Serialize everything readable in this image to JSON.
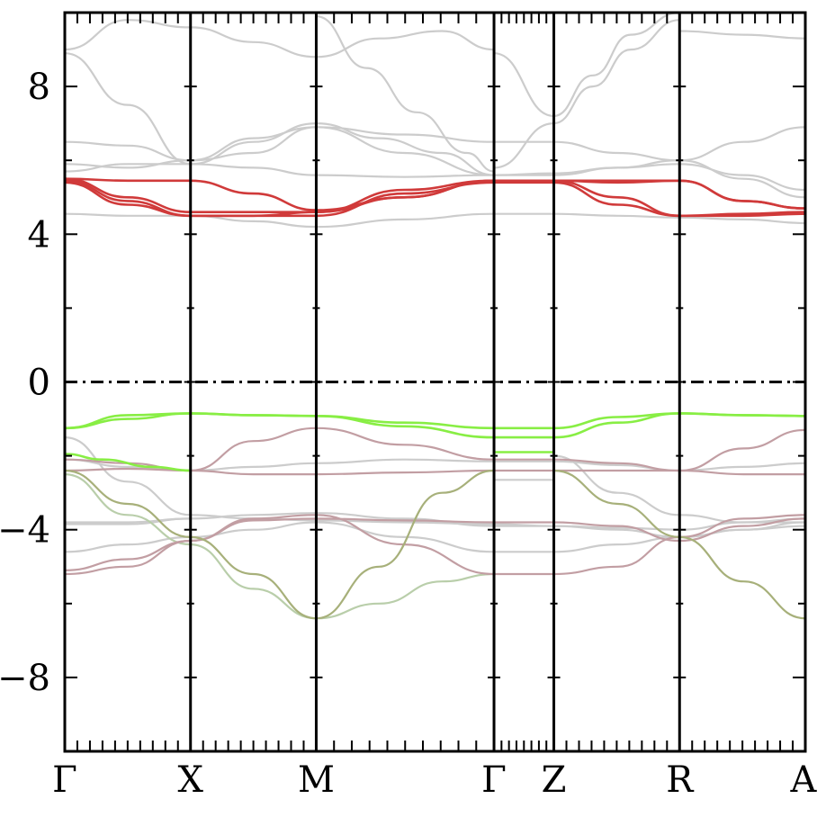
{
  "chart_data": {
    "type": "line",
    "title": "",
    "xlabel": "",
    "ylabel": "",
    "ylim": [
      -10,
      10
    ],
    "yticks": [
      8,
      4,
      0,
      -4,
      -8
    ],
    "ytick_labels": [
      "8",
      "4",
      "0",
      "−4",
      "−8"
    ],
    "kpath_ticks": [
      {
        "label": "Γ",
        "x": 0.0
      },
      {
        "label": "X",
        "x": 1.0
      },
      {
        "label": "M",
        "x": 2.0
      },
      {
        "label": "Γ",
        "x": 3.414
      },
      {
        "label": "Z",
        "x": 3.89
      },
      {
        "label": "R",
        "x": 4.89
      },
      {
        "label": "A",
        "x": 5.89
      }
    ],
    "xlim": [
      0,
      5.89
    ],
    "fermi_level": 0,
    "grid": false,
    "legend": "none",
    "colors": {
      "red": "#d03a3a",
      "green": "#88ee44",
      "gray": "#cccccc",
      "mauve": "#c29ea3",
      "olive": "#a7b07a",
      "sage": "#b9ceaa",
      "axis": "#000000"
    },
    "series": [
      {
        "color": "red",
        "x": [
          0,
          0.5,
          1,
          1.5,
          2,
          2.7,
          3.414,
          3.89,
          4.4,
          4.89,
          5.4,
          5.89
        ],
        "y": [
          5.5,
          5.45,
          5.45,
          5.1,
          4.65,
          5.0,
          5.45,
          5.45,
          5.45,
          5.45,
          4.9,
          4.7
        ]
      },
      {
        "color": "red",
        "x": [
          0,
          0.5,
          1,
          1.5,
          2,
          2.7,
          3.414,
          3.89,
          4.4,
          4.89,
          5.4,
          5.89
        ],
        "y": [
          5.5,
          5.0,
          4.6,
          4.6,
          4.6,
          5.0,
          5.45,
          5.45,
          5.4,
          5.45,
          4.9,
          4.7
        ]
      },
      {
        "color": "red",
        "x": [
          0,
          0.5,
          1,
          1.5,
          2,
          2.7,
          3.414,
          3.89,
          4.4,
          4.89,
          5.4,
          5.89
        ],
        "y": [
          5.45,
          4.9,
          4.5,
          4.5,
          4.6,
          5.2,
          5.45,
          5.45,
          5.0,
          4.5,
          4.55,
          4.6
        ]
      },
      {
        "color": "red",
        "x": [
          0,
          0.5,
          1,
          1.5,
          2,
          2.7,
          3.414,
          3.89,
          4.4,
          4.89,
          5.4,
          5.89
        ],
        "y": [
          5.4,
          4.8,
          4.5,
          4.5,
          4.5,
          5.1,
          5.4,
          5.4,
          4.8,
          4.5,
          4.5,
          4.55
        ]
      },
      {
        "color": "green",
        "x": [
          0,
          0.5,
          1,
          1.5,
          2,
          2.7,
          3.414,
          3.89,
          4.4,
          4.89,
          5.4,
          5.89
        ],
        "y": [
          -1.25,
          -0.9,
          -0.85,
          -0.9,
          -0.92,
          -1.1,
          -1.25,
          -1.25,
          -0.95,
          -0.85,
          -0.9,
          -0.92
        ]
      },
      {
        "color": "green",
        "x": [
          0,
          0.5,
          1,
          1.5,
          2,
          2.7,
          3.414,
          3.89,
          4.4,
          4.89,
          5.4,
          5.89
        ],
        "y": [
          -1.25,
          -1.0,
          -0.85,
          -0.9,
          -0.92,
          -1.2,
          -1.5,
          -1.5,
          -1.1,
          -0.85,
          -0.9,
          -0.92
        ]
      },
      {
        "color": "green",
        "x": [
          0,
          0.3,
          0.7,
          1
        ],
        "y": [
          -1.95,
          -2.1,
          -2.3,
          -2.4
        ]
      },
      {
        "color": "green",
        "x": [
          3.414,
          3.89
        ],
        "y": [
          -1.9,
          -1.9
        ]
      },
      {
        "color": "olive",
        "x": [
          0,
          0.5,
          1,
          1.5,
          2
        ],
        "y": [
          -2.4,
          -3.3,
          -4.2,
          -5.2,
          -6.4
        ]
      },
      {
        "color": "olive",
        "x": [
          2,
          2.5,
          3.0,
          3.414
        ],
        "y": [
          -6.4,
          -5.0,
          -3.0,
          -2.4
        ]
      },
      {
        "color": "olive",
        "x": [
          3.89,
          4.4,
          4.89,
          5.4,
          5.89
        ],
        "y": [
          -2.4,
          -3.3,
          -4.2,
          -5.4,
          -6.4
        ]
      },
      {
        "color": "sage",
        "x": [
          0,
          0.5,
          1,
          1.5,
          2,
          2.5,
          3.0,
          3.414
        ],
        "y": [
          -2.5,
          -3.6,
          -4.4,
          -5.6,
          -6.4,
          -6.0,
          -5.4,
          -5.2
        ]
      },
      {
        "color": "mauve",
        "x": [
          0,
          0.5,
          1,
          1.5,
          2,
          2.7,
          3.414,
          3.89,
          4.4,
          4.89,
          5.4,
          5.89
        ],
        "y": [
          -2.1,
          -2.2,
          -2.4,
          -2.5,
          -2.5,
          -2.45,
          -2.4,
          -2.4,
          -2.4,
          -2.4,
          -2.5,
          -2.5
        ]
      },
      {
        "color": "mauve",
        "x": [
          0,
          0.5,
          1,
          1.5,
          2,
          2.7,
          3.414,
          3.89,
          4.4,
          4.89,
          5.4,
          5.89
        ],
        "y": [
          -2.4,
          -2.35,
          -2.4,
          -1.6,
          -1.25,
          -1.7,
          -2.1,
          -2.1,
          -2.2,
          -2.4,
          -1.8,
          -1.3
        ]
      },
      {
        "color": "mauve",
        "x": [
          0,
          0.5,
          1,
          1.5,
          2,
          2.7,
          3.414,
          3.89,
          4.4,
          4.89,
          5.4,
          5.89
        ],
        "y": [
          -5.2,
          -5.0,
          -4.3,
          -3.7,
          -3.6,
          -4.4,
          -5.2,
          -5.2,
          -5.0,
          -4.2,
          -3.7,
          -3.6
        ]
      },
      {
        "color": "mauve",
        "x": [
          0,
          0.5,
          1,
          1.5,
          2,
          2.7,
          3.414,
          3.89,
          4.4,
          4.89,
          5.4,
          5.89
        ],
        "y": [
          -5.1,
          -4.8,
          -4.3,
          -3.75,
          -3.7,
          -3.75,
          -3.8,
          -3.8,
          -3.9,
          -4.3,
          -3.9,
          -3.7
        ]
      },
      {
        "color": "gray",
        "x": [
          0,
          0.5,
          1,
          1.5,
          2,
          2.7,
          3.414,
          3.89,
          4.4,
          4.89,
          5.4,
          5.89
        ],
        "y": [
          -1.5,
          -2.7,
          -3.6,
          -3.7,
          -3.75,
          -3.8,
          -3.85,
          -3.9,
          -3.95,
          -4.0,
          -3.8,
          -3.7
        ]
      },
      {
        "color": "gray",
        "x": [
          0,
          0.5,
          1,
          1.5,
          2,
          2.7,
          3.414,
          3.89,
          4.4,
          4.89,
          5.4,
          5.89
        ],
        "y": [
          -3.8,
          -3.8,
          -3.7,
          -3.6,
          -3.55,
          -3.7,
          -3.9,
          -3.9,
          -4.0,
          -4.2,
          -4.0,
          -3.9
        ]
      },
      {
        "color": "gray",
        "x": [
          0,
          0.5,
          1,
          1.5,
          2,
          2.7,
          3.414,
          3.89,
          4.4,
          4.89,
          5.4,
          5.89
        ],
        "y": [
          -4.6,
          -4.4,
          -4.2,
          -4.0,
          -3.8,
          -4.2,
          -4.6,
          -4.6,
          -4.4,
          -4.2,
          -4.0,
          -3.8
        ]
      },
      {
        "color": "gray",
        "x": [
          0,
          0.5,
          1,
          1.5,
          2,
          2.7,
          3.414,
          3.89,
          4.4,
          4.89,
          5.4,
          5.89
        ],
        "y": [
          -2.1,
          -2.3,
          -2.4,
          -2.3,
          -2.2,
          -2.1,
          -2.15,
          -2.15,
          -2.25,
          -2.4,
          -2.3,
          -2.2
        ]
      },
      {
        "color": "gray",
        "x": [
          3.414,
          3.89
        ],
        "y": [
          -2.65,
          -2.65
        ]
      },
      {
        "color": "gray",
        "x": [
          0,
          0.5,
          1,
          1.5,
          2,
          2.7,
          3.414,
          3.89,
          4.4,
          4.89,
          5.4,
          5.89
        ],
        "y": [
          4.55,
          4.5,
          4.5,
          4.35,
          4.2,
          4.4,
          4.55,
          4.55,
          4.5,
          4.45,
          4.4,
          4.3
        ]
      },
      {
        "color": "gray",
        "x": [
          0,
          0.5,
          1,
          1.5,
          2,
          2.7,
          3.414,
          3.89,
          4.4,
          4.89,
          5.4,
          5.89
        ],
        "y": [
          6.5,
          6.4,
          6.0,
          6.6,
          6.9,
          6.7,
          6.5,
          6.5,
          6.2,
          6.0,
          6.5,
          6.9
        ]
      },
      {
        "color": "gray",
        "x": [
          0,
          0.5,
          1,
          1.5,
          2,
          2.7,
          3.414,
          3.89,
          4.4,
          4.89,
          5.4,
          5.89
        ],
        "y": [
          5.9,
          5.8,
          6.0,
          6.2,
          6.9,
          6.2,
          5.6,
          5.6,
          5.8,
          6.0,
          5.5,
          5.0
        ]
      },
      {
        "color": "gray",
        "x": [
          0,
          0.5,
          1,
          1.5,
          2,
          2.7,
          3.414,
          3.89,
          4.4,
          4.89,
          5.4,
          5.89
        ],
        "y": [
          5.7,
          5.9,
          5.9,
          5.8,
          5.6,
          5.55,
          5.6,
          5.65,
          5.8,
          5.9,
          5.6,
          5.2
        ]
      },
      {
        "color": "gray",
        "x": [
          0,
          0.5,
          1,
          1.5,
          2,
          2.5,
          3.0,
          3.414
        ],
        "y": [
          9.0,
          9.8,
          9.6,
          9.2,
          8.8,
          9.3,
          9.5,
          9.0
        ]
      },
      {
        "color": "gray",
        "x": [
          0,
          0.5,
          1,
          1.5,
          2,
          2.5,
          3.0,
          3.414
        ],
        "y": [
          8.9,
          7.5,
          5.9,
          6.5,
          7.0,
          6.6,
          6.2,
          5.6
        ]
      },
      {
        "color": "gray",
        "x": [
          2,
          2.4,
          2.8,
          3.2,
          3.414
        ],
        "y": [
          9.9,
          8.5,
          7.3,
          6.2,
          5.7
        ]
      },
      {
        "color": "gray",
        "x": [
          3.414,
          3.89,
          4.2,
          4.5,
          4.89
        ],
        "y": [
          8.9,
          7.2,
          8.3,
          9.4,
          10.0
        ]
      },
      {
        "color": "gray",
        "x": [
          3.414,
          3.89,
          4.2,
          4.5,
          4.89
        ],
        "y": [
          5.8,
          7.0,
          8.0,
          9.0,
          9.8
        ]
      },
      {
        "color": "gray",
        "x": [
          4.89,
          5.4,
          5.89
        ],
        "y": [
          9.5,
          9.4,
          9.3
        ]
      },
      {
        "color": "gray",
        "x": [
          3.89,
          4.4,
          4.89,
          5.4,
          5.89
        ],
        "y": [
          -2.0,
          -3.0,
          -3.6,
          -3.8,
          -3.8
        ]
      },
      {
        "color": "gray",
        "x": [
          0,
          0.5,
          1
        ],
        "y": [
          -3.85,
          -3.85,
          -3.7
        ]
      }
    ]
  }
}
